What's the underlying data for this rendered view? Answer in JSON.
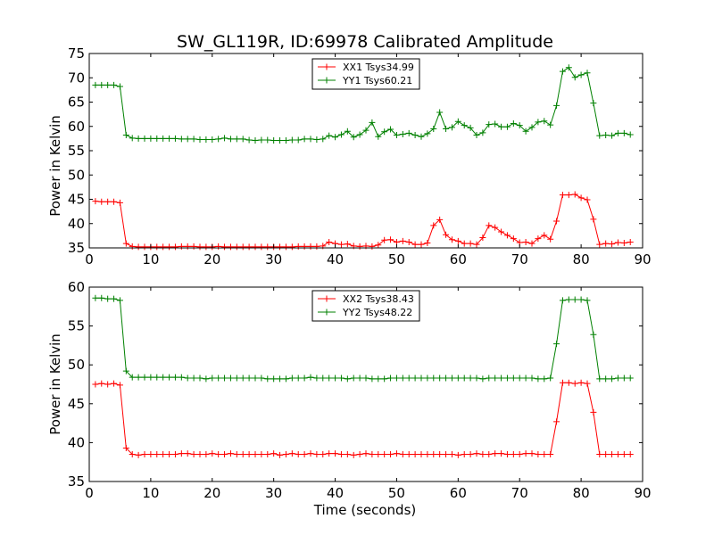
{
  "chart_data": [
    {
      "type": "line",
      "title": "SW_GL119R, ID:69978 Calibrated Amplitude",
      "xlabel": "",
      "ylabel": "Power in Kelvin",
      "xlim": [
        0,
        90
      ],
      "ylim": [
        35,
        75
      ],
      "xticks": [
        "0",
        "10",
        "20",
        "30",
        "40",
        "50",
        "60",
        "70",
        "80",
        "90"
      ],
      "yticks": [
        "35",
        "40",
        "45",
        "50",
        "55",
        "60",
        "65",
        "70",
        "75"
      ],
      "grid": false,
      "legend_position": "top-center",
      "x": [
        1,
        2,
        3,
        4,
        5,
        6,
        7,
        8,
        9,
        10,
        11,
        12,
        13,
        14,
        15,
        16,
        17,
        18,
        19,
        20,
        21,
        22,
        23,
        24,
        25,
        26,
        27,
        28,
        29,
        30,
        31,
        32,
        33,
        34,
        35,
        36,
        37,
        38,
        39,
        40,
        41,
        42,
        43,
        44,
        45,
        46,
        47,
        48,
        49,
        50,
        51,
        52,
        53,
        54,
        55,
        56,
        57,
        58,
        59,
        60,
        61,
        62,
        63,
        64,
        65,
        66,
        67,
        68,
        69,
        70,
        71,
        72,
        73,
        74,
        75,
        76,
        77,
        78,
        79,
        80,
        81,
        82,
        83,
        84,
        85,
        86,
        87,
        88
      ],
      "series": [
        {
          "name": "XX1 Tsys34.99",
          "color": "#ff0000",
          "values": [
            44.6,
            44.5,
            44.5,
            44.5,
            44.3,
            35.9,
            35.3,
            35.2,
            35.2,
            35.2,
            35.2,
            35.2,
            35.2,
            35.2,
            35.3,
            35.3,
            35.3,
            35.2,
            35.2,
            35.2,
            35.3,
            35.2,
            35.2,
            35.2,
            35.2,
            35.2,
            35.2,
            35.2,
            35.2,
            35.2,
            35.2,
            35.2,
            35.2,
            35.3,
            35.3,
            35.3,
            35.3,
            35.4,
            36.2,
            35.9,
            35.7,
            35.8,
            35.4,
            35.3,
            35.4,
            35.3,
            35.6,
            36.6,
            36.7,
            36.2,
            36.4,
            36.2,
            35.7,
            35.7,
            36.0,
            39.6,
            40.8,
            37.7,
            36.7,
            36.4,
            35.9,
            35.9,
            35.7,
            37.1,
            39.6,
            39.2,
            38.3,
            37.6,
            36.9,
            36.1,
            36.2,
            35.9,
            36.9,
            37.6,
            36.8,
            40.5,
            45.9,
            45.9,
            46.0,
            45.3,
            44.9,
            40.9,
            35.7,
            35.9,
            35.8,
            36.1,
            36.0,
            36.2
          ]
        },
        {
          "name": "YY1 Tsys60.21",
          "color": "#008000",
          "values": [
            68.5,
            68.5,
            68.5,
            68.5,
            68.2,
            58.2,
            57.6,
            57.5,
            57.5,
            57.5,
            57.5,
            57.5,
            57.5,
            57.5,
            57.4,
            57.4,
            57.4,
            57.3,
            57.3,
            57.3,
            57.4,
            57.6,
            57.4,
            57.4,
            57.4,
            57.2,
            57.1,
            57.2,
            57.2,
            57.1,
            57.1,
            57.1,
            57.2,
            57.2,
            57.4,
            57.4,
            57.3,
            57.4,
            58.1,
            57.8,
            58.3,
            59.0,
            57.8,
            58.3,
            59.2,
            60.8,
            57.9,
            58.9,
            59.4,
            58.2,
            58.4,
            58.6,
            58.2,
            57.9,
            58.5,
            59.5,
            62.9,
            59.5,
            59.8,
            61.0,
            60.2,
            59.7,
            58.2,
            58.7,
            60.4,
            60.5,
            59.9,
            59.9,
            60.6,
            60.2,
            59.0,
            59.8,
            60.9,
            61.1,
            60.3,
            64.3,
            71.3,
            72.1,
            70.1,
            70.6,
            71.0,
            64.8,
            58.1,
            58.2,
            58.1,
            58.6,
            58.6,
            58.3
          ]
        }
      ]
    },
    {
      "type": "line",
      "title": "",
      "xlabel": "Time (seconds)",
      "ylabel": "Power in Kelvin",
      "xlim": [
        0,
        90
      ],
      "ylim": [
        35,
        60
      ],
      "xticks": [
        "0",
        "10",
        "20",
        "30",
        "40",
        "50",
        "60",
        "70",
        "80",
        "90"
      ],
      "yticks": [
        "35",
        "40",
        "45",
        "50",
        "55",
        "60"
      ],
      "grid": false,
      "legend_position": "top-center",
      "x": [
        1,
        2,
        3,
        4,
        5,
        6,
        7,
        8,
        9,
        10,
        11,
        12,
        13,
        14,
        15,
        16,
        17,
        18,
        19,
        20,
        21,
        22,
        23,
        24,
        25,
        26,
        27,
        28,
        29,
        30,
        31,
        32,
        33,
        34,
        35,
        36,
        37,
        38,
        39,
        40,
        41,
        42,
        43,
        44,
        45,
        46,
        47,
        48,
        49,
        50,
        51,
        52,
        53,
        54,
        55,
        56,
        57,
        58,
        59,
        60,
        61,
        62,
        63,
        64,
        65,
        66,
        67,
        68,
        69,
        70,
        71,
        72,
        73,
        74,
        75,
        76,
        77,
        78,
        79,
        80,
        81,
        82,
        83,
        84,
        85,
        86,
        87,
        88
      ],
      "series": [
        {
          "name": "XX2 Tsys38.43",
          "color": "#ff0000",
          "values": [
            47.5,
            47.6,
            47.5,
            47.6,
            47.4,
            39.3,
            38.5,
            38.4,
            38.5,
            38.5,
            38.5,
            38.5,
            38.5,
            38.5,
            38.6,
            38.6,
            38.5,
            38.5,
            38.5,
            38.6,
            38.5,
            38.5,
            38.6,
            38.5,
            38.5,
            38.5,
            38.5,
            38.5,
            38.5,
            38.6,
            38.4,
            38.5,
            38.6,
            38.5,
            38.5,
            38.6,
            38.5,
            38.5,
            38.6,
            38.6,
            38.5,
            38.5,
            38.4,
            38.5,
            38.6,
            38.5,
            38.5,
            38.5,
            38.5,
            38.6,
            38.5,
            38.5,
            38.5,
            38.5,
            38.5,
            38.5,
            38.5,
            38.5,
            38.5,
            38.4,
            38.5,
            38.5,
            38.6,
            38.5,
            38.5,
            38.6,
            38.6,
            38.5,
            38.5,
            38.5,
            38.6,
            38.6,
            38.5,
            38.5,
            38.5,
            42.7,
            47.7,
            47.7,
            47.6,
            47.7,
            47.6,
            43.9,
            38.5,
            38.5,
            38.5,
            38.5,
            38.5,
            38.5
          ]
        },
        {
          "name": "YY2 Tsys48.22",
          "color": "#008000",
          "values": [
            58.6,
            58.6,
            58.5,
            58.5,
            58.3,
            49.2,
            48.4,
            48.4,
            48.4,
            48.4,
            48.4,
            48.4,
            48.4,
            48.4,
            48.4,
            48.3,
            48.3,
            48.3,
            48.2,
            48.3,
            48.3,
            48.3,
            48.3,
            48.3,
            48.3,
            48.3,
            48.3,
            48.3,
            48.2,
            48.2,
            48.2,
            48.2,
            48.3,
            48.3,
            48.3,
            48.4,
            48.3,
            48.3,
            48.3,
            48.3,
            48.3,
            48.2,
            48.3,
            48.3,
            48.3,
            48.2,
            48.2,
            48.2,
            48.3,
            48.3,
            48.3,
            48.3,
            48.3,
            48.3,
            48.3,
            48.3,
            48.3,
            48.3,
            48.3,
            48.3,
            48.3,
            48.3,
            48.3,
            48.2,
            48.3,
            48.3,
            48.3,
            48.3,
            48.3,
            48.3,
            48.3,
            48.3,
            48.2,
            48.2,
            48.3,
            52.7,
            58.3,
            58.4,
            58.4,
            58.4,
            58.3,
            53.9,
            48.2,
            48.2,
            48.2,
            48.3,
            48.3,
            48.3
          ]
        }
      ]
    }
  ]
}
